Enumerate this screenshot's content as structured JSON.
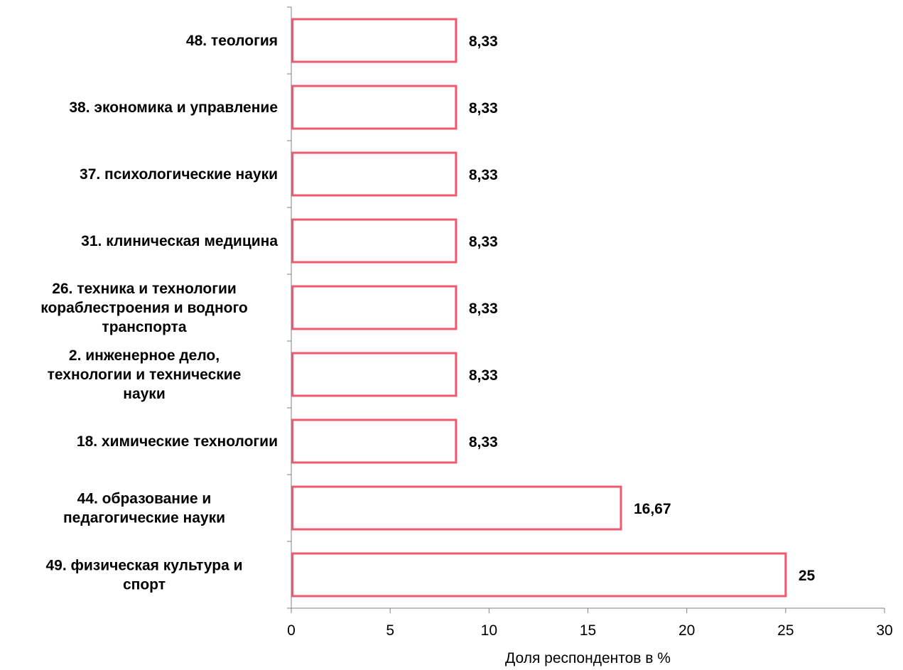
{
  "chart_data": {
    "type": "bar",
    "orientation": "horizontal",
    "categories": [
      "48. теология",
      "38. экономика и управление",
      "37. психологические науки",
      "31. клиническая медицина",
      "26. техника и технологии кораблестроения и водного транспорта",
      "2. инженерное дело, технологии и технические науки",
      "18. химические технологии",
      "44. образование и педагогические науки",
      "49. физическая культура и спорт"
    ],
    "category_lines": [
      [
        "48. теология"
      ],
      [
        "38. экономика и управление"
      ],
      [
        "37. психологические науки"
      ],
      [
        "31. клиническая медицина"
      ],
      [
        "26. техника и технологии",
        "кораблестроения и водного",
        "транспорта"
      ],
      [
        "2. инженерное дело,",
        "технологии и технические",
        "науки"
      ],
      [
        "18. химические технологии"
      ],
      [
        "44. образование и",
        "педагогические науки"
      ],
      [
        "49. физическая культура и",
        "спорт"
      ]
    ],
    "values": [
      8.33,
      8.33,
      8.33,
      8.33,
      8.33,
      8.33,
      8.33,
      16.67,
      25
    ],
    "value_labels": [
      "8,33",
      "8,33",
      "8,33",
      "8,33",
      "8,33",
      "8,33",
      "8,33",
      "16,67",
      "25"
    ],
    "xlabel": "Доля респондентов в %",
    "ylabel": "",
    "xlim": [
      0,
      30
    ],
    "xticks": [
      0,
      5,
      10,
      15,
      20,
      25,
      30
    ],
    "xtick_labels": [
      "0",
      "5",
      "10",
      "15",
      "20",
      "25",
      "30"
    ],
    "grid": false,
    "bar_fill": "#ffffff",
    "bar_stroke": "#f05a6e"
  }
}
